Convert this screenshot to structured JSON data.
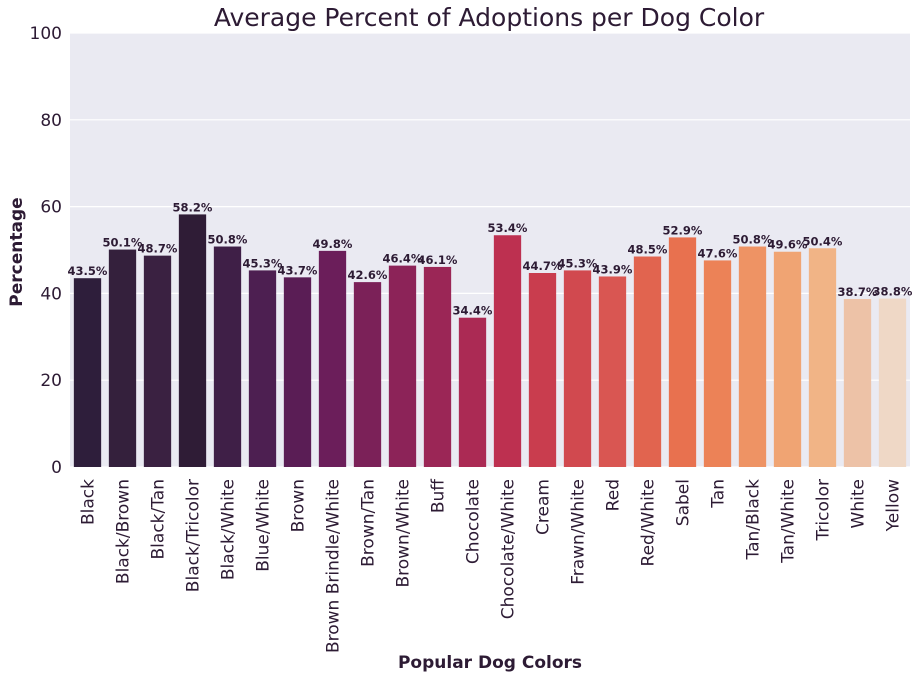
{
  "chart_data": {
    "type": "bar",
    "title": "Average Percent of Adoptions per Dog Color",
    "xlabel": "Popular Dog Colors",
    "ylabel": "Percentage",
    "ylim": [
      0,
      100
    ],
    "yticks": [
      0,
      20,
      40,
      60,
      80,
      100
    ],
    "grid": true,
    "categories": [
      "Black",
      "Black/Brown",
      "Black/Tan",
      "Black/Tricolor",
      "Black/White",
      "Blue/White",
      "Brown",
      "Brown Brindle/White",
      "Brown/Tan",
      "Brown/White",
      "Buff",
      "Chocolate",
      "Chocolate/White",
      "Cream",
      "Frawn/White",
      "Red",
      "Red/White",
      "Sabel",
      "Tan",
      "Tan/Black",
      "Tan/White",
      "Tricolor",
      "White",
      "Yellow"
    ],
    "values": [
      43.5,
      50.1,
      48.7,
      58.2,
      50.8,
      45.3,
      43.7,
      49.8,
      42.6,
      46.4,
      46.1,
      34.4,
      53.4,
      44.7,
      45.3,
      43.9,
      48.5,
      52.9,
      47.6,
      50.8,
      49.6,
      50.4,
      38.7,
      38.8
    ],
    "data_labels": [
      "43.5%",
      "50.1%",
      "48.7%",
      "58.2%",
      "50.8%",
      "45.3%",
      "43.7%",
      "49.8%",
      "42.6%",
      "46.4%",
      "46.1%",
      "34.4%",
      "53.4%",
      "44.7%",
      "45.3%",
      "43.9%",
      "48.5%",
      "52.9%",
      "47.6%",
      "50.8%",
      "49.6%",
      "50.4%",
      "38.7%",
      "38.8%"
    ],
    "colors": [
      "#2e1e3b",
      "#34203c",
      "#3a2141",
      "#2f1c36",
      "#3f1f47",
      "#4d1f51",
      "#5a1d55",
      "#6b1e5a",
      "#7b2158",
      "#8c2358",
      "#9b2656",
      "#ab2a54",
      "#bd3050",
      "#c93d4e",
      "#d1494f",
      "#d95652",
      "#e1644f",
      "#e8714f",
      "#ec8257",
      "#ee9364",
      "#f0a473",
      "#f1b486",
      "#edc2a7",
      "#efd8c6"
    ],
    "plot_background": "#eaeaf2",
    "text_color": "#2d1b34"
  }
}
